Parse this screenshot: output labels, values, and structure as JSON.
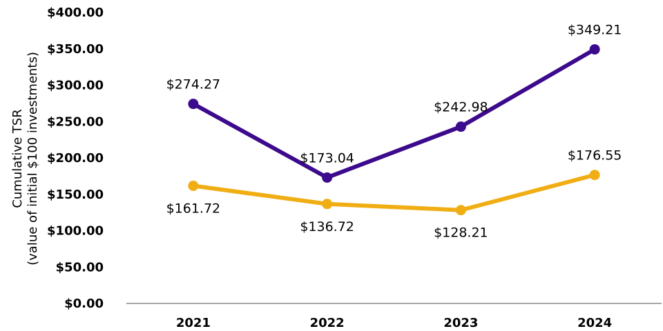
{
  "chart_data": {
    "type": "line",
    "categories": [
      "2021",
      "2022",
      "2023",
      "2024"
    ],
    "series": [
      {
        "values": [
          274.27,
          173.04,
          242.98,
          349.21
        ],
        "labels": [
          "$274.27",
          "$173.04",
          "$242.98",
          "$349.21"
        ],
        "color": "#3c0a8c"
      },
      {
        "values": [
          161.72,
          136.72,
          128.21,
          176.55
        ],
        "labels": [
          "$161.72",
          "$136.72",
          "$128.21",
          "$176.55"
        ],
        "color": "#f0ae14"
      }
    ],
    "ylabel_line1": "Cumulative TSR",
    "ylabel_line2": "(value of initial $100 investments)",
    "ylim": [
      0,
      400
    ],
    "yticks": [
      0,
      50,
      100,
      150,
      200,
      250,
      300,
      350,
      400
    ],
    "ytick_labels": [
      "$0.00",
      "$50.00",
      "$100.00",
      "$150.00",
      "$200.00",
      "$250.00",
      "$300.00",
      "$350.00",
      "$400.00"
    ],
    "grid": false,
    "axis_color": "#a6a6a6"
  }
}
